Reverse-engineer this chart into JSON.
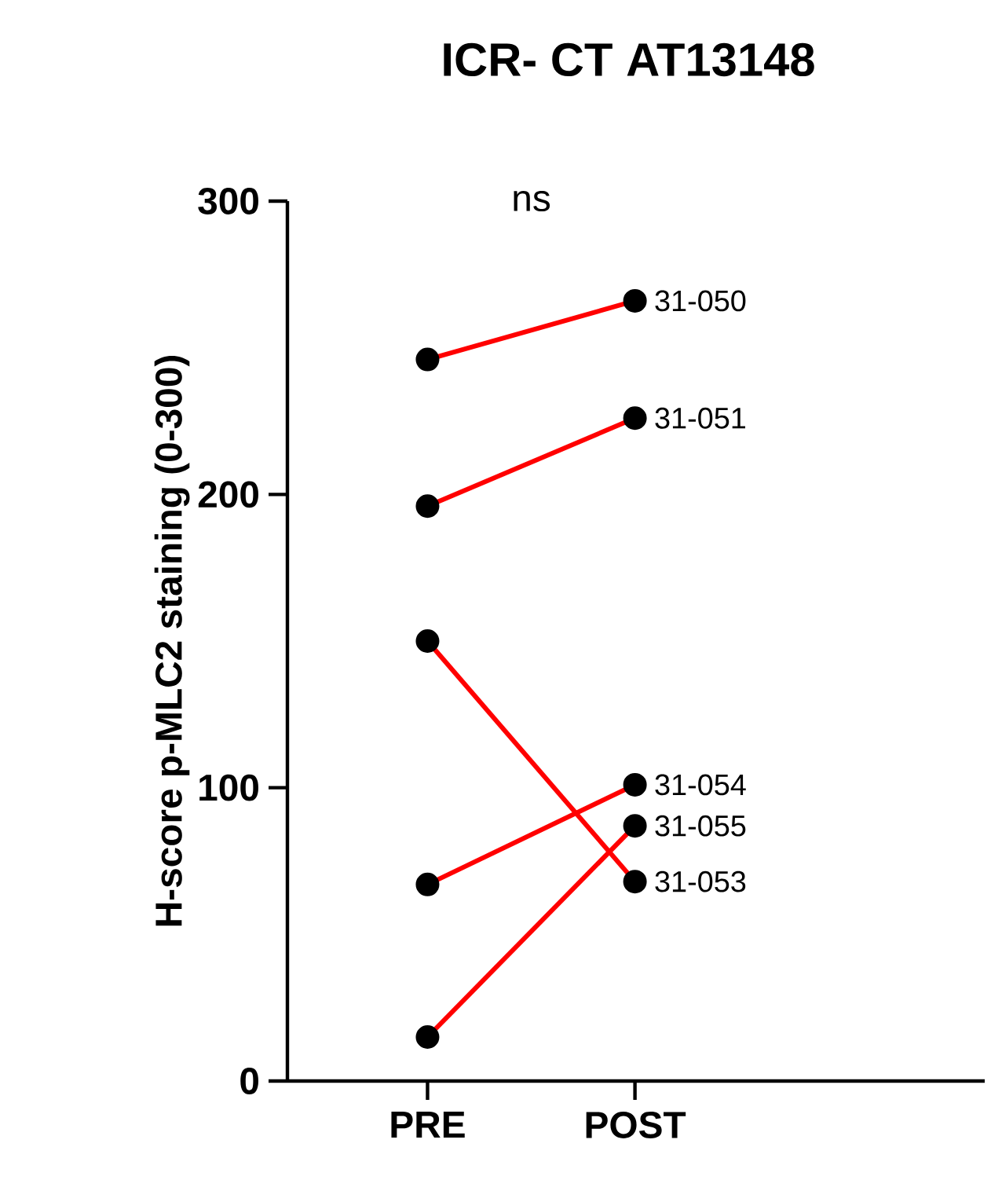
{
  "chart_data": {
    "type": "line",
    "title": "ICR- CT AT13148",
    "ylabel": "H-score p-MLC2 staining (0-300)",
    "categories": [
      "PRE",
      "POST"
    ],
    "ylim": [
      0,
      300
    ],
    "yticks": [
      0,
      100,
      200,
      300
    ],
    "marker": "circle",
    "grid": false,
    "legend": false,
    "annotations": [
      "ns"
    ],
    "series": [
      {
        "name": "31-050",
        "color": "#ff0000",
        "values": [
          246,
          266
        ]
      },
      {
        "name": "31-051",
        "color": "#ff0000",
        "values": [
          196,
          226
        ]
      },
      {
        "name": "31-053",
        "color": "#ff0000",
        "values": [
          150,
          68
        ]
      },
      {
        "name": "31-054",
        "color": "#ff0000",
        "values": [
          67,
          101
        ]
      },
      {
        "name": "31-055",
        "color": "#ff0000",
        "values": [
          15,
          87
        ]
      }
    ]
  }
}
